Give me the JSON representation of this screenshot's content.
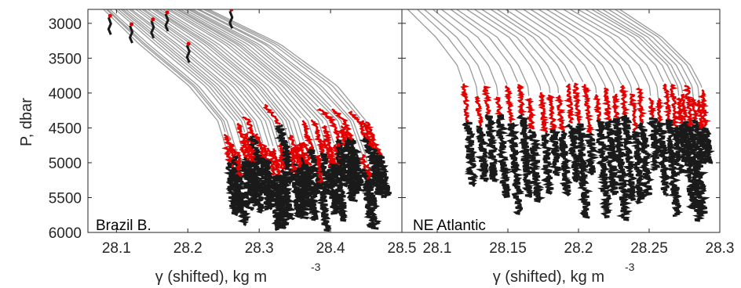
{
  "colors": {
    "profile": "#9b9b9b",
    "highlight": "#e30000",
    "dense": "#1a1a1a",
    "axis": "#262626"
  },
  "chart_data": [
    {
      "type": "line",
      "panel_label": "Brazil B.",
      "ylabel": "P, dbar",
      "xlabel": "γ (shifted), kg m",
      "xlabel_exponent": "-3",
      "xlim": [
        28.06,
        28.5
      ],
      "ylim": [
        2800,
        6000
      ],
      "y_reversed": true,
      "xticks": [
        28.1,
        28.2,
        28.3,
        28.4,
        28.5
      ],
      "xtick_labels": [
        "28.1",
        "28.2",
        "28.3",
        "28.4",
        "28.5"
      ],
      "yticks": [
        3000,
        3500,
        4000,
        4500,
        5000,
        5500,
        6000
      ],
      "ytick_labels": [
        "3000",
        "3500",
        "4000",
        "4500",
        "5000",
        "5500",
        "6000"
      ],
      "series": [
        {
          "name": "",
          "values": [
            [
              28.08,
              2800
            ],
            [
              28.13,
              3300
            ],
            [
              28.2,
              3900
            ],
            [
              28.24,
              4400
            ],
            [
              28.255,
              4900
            ],
            [
              28.26,
              5400
            ],
            [
              28.265,
              5900
            ]
          ]
        },
        {
          "name": "",
          "values": [
            [
              28.11,
              2800
            ],
            [
              28.17,
              3300
            ],
            [
              28.24,
              3900
            ],
            [
              28.28,
              4400
            ],
            [
              28.295,
              4900
            ],
            [
              28.3,
              5400
            ],
            [
              28.305,
              5950
            ]
          ]
        },
        {
          "name": "",
          "values": [
            [
              28.14,
              2800
            ],
            [
              28.21,
              3300
            ],
            [
              28.28,
              3900
            ],
            [
              28.32,
              4400
            ],
            [
              28.335,
              4900
            ],
            [
              28.34,
              5400
            ],
            [
              28.345,
              5950
            ]
          ]
        },
        {
          "name": "",
          "values": [
            [
              28.17,
              2800
            ],
            [
              28.25,
              3300
            ],
            [
              28.32,
              3900
            ],
            [
              28.36,
              4400
            ],
            [
              28.375,
              4900
            ],
            [
              28.38,
              5400
            ],
            [
              28.385,
              5950
            ]
          ]
        },
        {
          "name": "",
          "values": [
            [
              28.2,
              2800
            ],
            [
              28.29,
              3300
            ],
            [
              28.36,
              3900
            ],
            [
              28.41,
              4400
            ],
            [
              28.425,
              4900
            ],
            [
              28.43,
              5400
            ],
            [
              28.435,
              5950
            ]
          ]
        },
        {
          "name": "",
          "values": [
            [
              28.23,
              2800
            ],
            [
              28.33,
              3300
            ],
            [
              28.41,
              3900
            ],
            [
              28.45,
              4400
            ],
            [
              28.47,
              4900
            ],
            [
              28.48,
              5400
            ],
            [
              28.485,
              5950
            ]
          ]
        }
      ]
    },
    {
      "type": "line",
      "panel_label": "NE Atlantic",
      "ylabel": "",
      "xlabel": "γ (shifted), kg m",
      "xlabel_exponent": "-3",
      "xlim": [
        28.075,
        28.3
      ],
      "ylim": [
        2800,
        6000
      ],
      "y_reversed": true,
      "xticks": [
        28.1,
        28.15,
        28.2,
        28.25,
        28.3
      ],
      "xtick_labels": [
        "28.1",
        "28.15",
        "28.2",
        "28.25",
        "28.3"
      ],
      "yticks": [
        3000,
        3500,
        4000,
        4500,
        5000,
        5500,
        6000
      ],
      "ytick_labels": [
        "",
        "",
        "",
        "",
        "",
        "",
        ""
      ],
      "series": [
        {
          "name": "",
          "values": [
            [
              28.08,
              2800
            ],
            [
              28.1,
              3200
            ],
            [
              28.115,
              3600
            ],
            [
              28.12,
              3900
            ],
            [
              28.122,
              4300
            ],
            [
              28.124,
              4700
            ],
            [
              28.126,
              5300
            ],
            [
              28.128,
              5750
            ]
          ]
        },
        {
          "name": "",
          "values": [
            [
              28.12,
              2800
            ],
            [
              28.15,
              3200
            ],
            [
              28.165,
              3600
            ],
            [
              28.172,
              3900
            ],
            [
              28.174,
              4300
            ],
            [
              28.176,
              4700
            ],
            [
              28.178,
              5300
            ],
            [
              28.18,
              5700
            ]
          ]
        },
        {
          "name": "",
          "values": [
            [
              28.16,
              2800
            ],
            [
              28.19,
              3200
            ],
            [
              28.21,
              3600
            ],
            [
              28.218,
              3900
            ],
            [
              28.22,
              4300
            ],
            [
              28.222,
              4700
            ],
            [
              28.224,
              5300
            ],
            [
              28.226,
              5700
            ]
          ]
        },
        {
          "name": "",
          "values": [
            [
              28.2,
              2800
            ],
            [
              28.235,
              3200
            ],
            [
              28.255,
              3600
            ],
            [
              28.262,
              3900
            ],
            [
              28.264,
              4300
            ],
            [
              28.266,
              4700
            ],
            [
              28.268,
              5300
            ],
            [
              28.27,
              5750
            ]
          ]
        },
        {
          "name": "",
          "values": [
            [
              28.23,
              2800
            ],
            [
              28.26,
              3200
            ],
            [
              28.28,
              3600
            ],
            [
              28.288,
              3900
            ],
            [
              28.29,
              4300
            ],
            [
              28.292,
              4700
            ],
            [
              28.294,
              5300
            ],
            [
              28.296,
              5700
            ]
          ]
        }
      ]
    }
  ]
}
